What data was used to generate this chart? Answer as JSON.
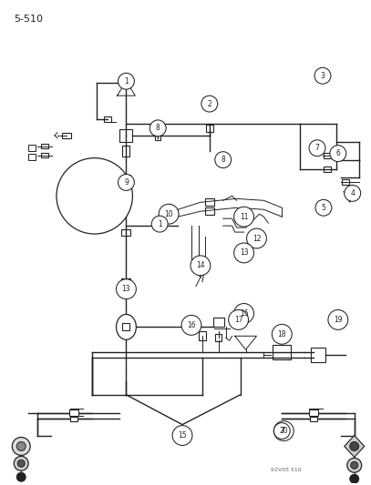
{
  "page_num": "5-510",
  "watermark": "92V05 510",
  "bg_color": "#ffffff",
  "line_color": "#222222",
  "fig_width": 4.07,
  "fig_height": 5.33,
  "dpi": 100
}
